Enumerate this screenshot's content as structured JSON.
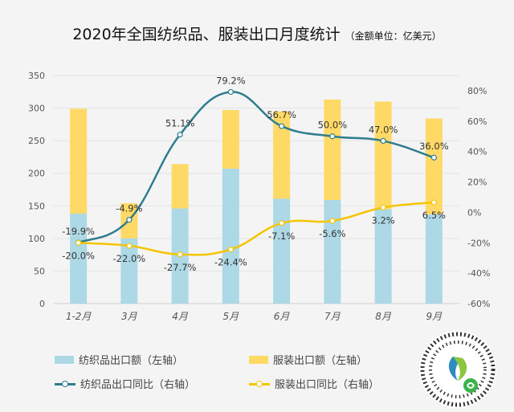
{
  "title": "2020年全国纺织品、服装出口月度统计",
  "unit": "（金额单位：亿美元）",
  "colors": {
    "textile_bar": "#add8e6",
    "garment_bar": "#ffd966",
    "textile_line": "#2e7d8f",
    "garment_line": "#f5c400",
    "grid": "#e3e3e3",
    "axis_text": "#555555"
  },
  "legend": [
    {
      "label": "纺织品出口额（左轴）",
      "kind": "bar",
      "color": "#add8e6"
    },
    {
      "label": "服装出口额（左轴）",
      "kind": "bar",
      "color": "#ffd966"
    },
    {
      "label": "纺织品出口同比（右轴）",
      "kind": "line",
      "color": "#2e7d8f"
    },
    {
      "label": "服装出口同比（右轴）",
      "kind": "line",
      "color": "#f5c400"
    }
  ],
  "chart_data": {
    "type": "bar",
    "title": "2020年全国纺织品、服装出口月度统计",
    "categories": [
      "1-2月",
      "3月",
      "4月",
      "5月",
      "6月",
      "7月",
      "8月",
      "9月"
    ],
    "series": [
      {
        "name": "纺织品出口额（左轴）",
        "axis": "left",
        "type": "bar",
        "stack": "total",
        "values": [
          138,
          100,
          146,
          207,
          161,
          159,
          145,
          137
        ]
      },
      {
        "name": "服装出口额（左轴）",
        "axis": "left",
        "type": "bar",
        "stack": "total",
        "values": [
          161,
          54,
          68,
          90,
          134,
          154,
          165,
          147
        ]
      },
      {
        "name": "纺织品出口同比（右轴）",
        "axis": "right",
        "type": "line",
        "values": [
          -19.9,
          -4.9,
          51.1,
          79.2,
          56.7,
          50.0,
          47.0,
          36.0
        ],
        "labels": [
          "-19.9%",
          "-4.9%",
          "51.1%",
          "79.2%",
          "56.7%",
          "50.0%",
          "47.0%",
          "36.0%"
        ]
      },
      {
        "name": "服装出口同比（右轴）",
        "axis": "right",
        "type": "line",
        "values": [
          -20.0,
          -22.0,
          -27.7,
          -24.4,
          -7.1,
          -5.6,
          3.2,
          6.5
        ],
        "labels": [
          "-20.0%",
          "-22.0%",
          "-27.7%",
          "-24.4%",
          "-7.1%",
          "-5.6%",
          "3.2%",
          "6.5%"
        ]
      }
    ],
    "left_axis": {
      "min": 0,
      "max": 350,
      "ticks": [
        "0",
        "50",
        "100",
        "150",
        "200",
        "250",
        "300",
        "350"
      ]
    },
    "right_axis": {
      "min": -60,
      "max": 90,
      "ticks": [
        "-60%",
        "-40%",
        "-20%",
        "0%",
        "20%",
        "40%",
        "60%",
        "80%"
      ],
      "tick_values": [
        -60,
        -40,
        -20,
        0,
        20,
        40,
        60,
        80
      ]
    },
    "grid": true,
    "legend_position": "bottom"
  }
}
